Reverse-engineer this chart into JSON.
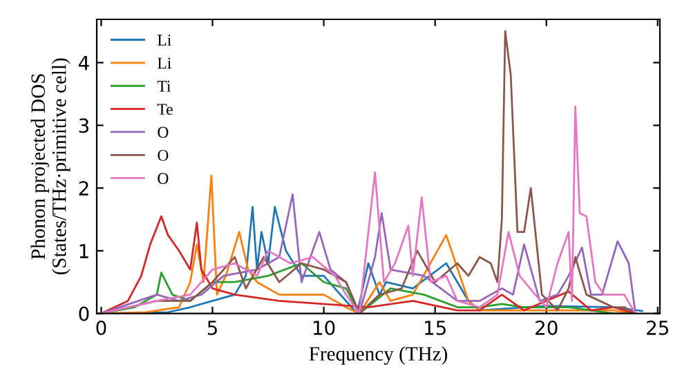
{
  "chart_data": {
    "type": "line",
    "xlabel": "Frequency (THz)",
    "ylabel": "Phonon projected DOS\n(States/THz·primitive cell)",
    "xlim": [
      -0.2,
      25.1
    ],
    "ylim": [
      0,
      4.69
    ],
    "xticks": [
      0,
      5,
      10,
      15,
      20,
      25
    ],
    "yticks": [
      0,
      1,
      2,
      3,
      4
    ],
    "grid": false,
    "legend": "top left",
    "marker": "none",
    "line_style": "solid",
    "series": [
      {
        "name": "Li",
        "color": "#1f77b4",
        "x": [
          0,
          3,
          4,
          5,
          5.5,
          6,
          6.5,
          6.8,
          7,
          7.2,
          7.5,
          7.8,
          8.3,
          9,
          10,
          10.5,
          11.5,
          12,
          12.5,
          12.8,
          14,
          15.5,
          16.5,
          17,
          20,
          23,
          24.3
        ],
        "values": [
          0,
          0.02,
          0.1,
          0.2,
          0.25,
          0.3,
          0.6,
          1.7,
          0.7,
          1.3,
          0.8,
          1.7,
          1.0,
          0.6,
          0.6,
          0.4,
          0,
          0.8,
          0.3,
          0.5,
          0.4,
          0.8,
          0.2,
          0.05,
          0.12,
          0.1,
          0.04
        ]
      },
      {
        "name": "Li",
        "color": "#ff7f0e",
        "x": [
          0,
          2,
          3.5,
          4,
          4.3,
          4.6,
          4.95,
          5.2,
          5.6,
          6.2,
          6.6,
          7,
          8,
          10,
          11,
          11.6,
          12.5,
          13,
          14,
          15.5,
          16.5,
          17,
          20,
          23,
          24
        ],
        "values": [
          0,
          0.02,
          0.1,
          0.5,
          1.1,
          0.5,
          2.2,
          0.3,
          0.6,
          1.3,
          0.7,
          0.5,
          0.3,
          0.3,
          0.1,
          0,
          0.5,
          0.2,
          0.3,
          1.25,
          0.2,
          0.05,
          0.05,
          0.05,
          0
        ]
      },
      {
        "name": "Ti",
        "color": "#2ca02c",
        "x": [
          0,
          1.5,
          2.5,
          2.7,
          3.2,
          4,
          5,
          6,
          7.5,
          9,
          10,
          11,
          11.6,
          13,
          14.5,
          16,
          17,
          18,
          19,
          21,
          22,
          23,
          24
        ],
        "values": [
          0,
          0.1,
          0.3,
          0.65,
          0.3,
          0.2,
          0.5,
          0.5,
          0.6,
          0.8,
          0.5,
          0.4,
          0,
          0.4,
          0.3,
          0.1,
          0.1,
          0.15,
          0.1,
          0.1,
          0.05,
          0,
          0
        ]
      },
      {
        "name": "Te",
        "color": "#d62728",
        "x": [
          0,
          1.2,
          1.8,
          2.2,
          2.7,
          3,
          3.5,
          4,
          4.3,
          4.5,
          5,
          6,
          8,
          10,
          12,
          14,
          16,
          17,
          18,
          19,
          21,
          22,
          23,
          24
        ],
        "values": [
          0,
          0.2,
          0.6,
          1.1,
          1.55,
          1.25,
          1.0,
          0.7,
          1.45,
          0.7,
          0.4,
          0.3,
          0.2,
          0.15,
          0.1,
          0.2,
          0.05,
          0.05,
          0.3,
          0.05,
          0.35,
          0.05,
          0.1,
          0
        ]
      },
      {
        "name": "O",
        "color": "#9467bd",
        "x": [
          0,
          2.5,
          3.5,
          4.5,
          5.5,
          7,
          8,
          8.6,
          9,
          9.8,
          10.3,
          11,
          11.6,
          12.3,
          12.6,
          13,
          14.5,
          16,
          17,
          18,
          18.5,
          19,
          19.7,
          20.5,
          21,
          21.6,
          22,
          22.5,
          23.2,
          23.7,
          24
        ],
        "values": [
          0,
          0.3,
          0.2,
          0.3,
          0.6,
          0.7,
          0.9,
          1.9,
          0.5,
          1.3,
          0.7,
          0.5,
          0,
          0.9,
          1.6,
          0.7,
          0.6,
          0.2,
          0.2,
          0.4,
          0.3,
          1.1,
          0.2,
          0.3,
          0.6,
          1.05,
          0.3,
          0.3,
          1.15,
          0.8,
          0
        ]
      },
      {
        "name": "O",
        "color": "#8c564b",
        "x": [
          0,
          2.5,
          4,
          5,
          6,
          6.5,
          7.3,
          8,
          9,
          10,
          11,
          11.6,
          12.5,
          13.5,
          14.2,
          15,
          16,
          16.5,
          17,
          17.5,
          17.8,
          18.0,
          18.15,
          18.4,
          18.7,
          19.0,
          19.3,
          19.8,
          20.5,
          21,
          21.3,
          21.8,
          23,
          23.5,
          24
        ],
        "values": [
          0,
          0.2,
          0.2,
          0.5,
          0.9,
          0.4,
          0.9,
          0.5,
          0.8,
          0.7,
          0.5,
          0,
          0.3,
          0.4,
          1.0,
          0.5,
          0.8,
          0.6,
          0.9,
          0.8,
          0.5,
          1.5,
          4.5,
          3.8,
          1.3,
          1.3,
          2.0,
          0.3,
          0.05,
          0.4,
          0.9,
          0.3,
          0.1,
          0.1,
          0
        ]
      },
      {
        "name": "O",
        "color": "#e377c2",
        "x": [
          0,
          2.5,
          4,
          5,
          6,
          7,
          7.5,
          8.5,
          9.5,
          10.5,
          11,
          11.6,
          12.3,
          12.7,
          13.2,
          13.8,
          14.0,
          14.4,
          14.8,
          15.5,
          16,
          17,
          17.8,
          18.3,
          18.8,
          19.5,
          20,
          20.5,
          21,
          21.15,
          21.3,
          21.5,
          21.8,
          22.2,
          22.6,
          23.5,
          24
        ],
        "values": [
          0,
          0.2,
          0.3,
          0.7,
          0.8,
          0.6,
          1.0,
          0.8,
          0.9,
          0.6,
          0.3,
          0,
          2.25,
          0.5,
          0.8,
          1.4,
          0.6,
          1.85,
          0.5,
          0.6,
          0.2,
          0.1,
          0.3,
          1.3,
          0.6,
          0.3,
          0.1,
          0.8,
          1.3,
          0.2,
          3.3,
          1.6,
          1.55,
          0.5,
          0.3,
          0.3,
          0
        ]
      }
    ]
  }
}
